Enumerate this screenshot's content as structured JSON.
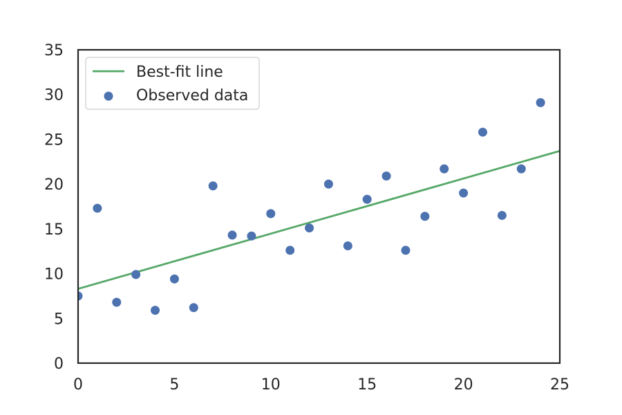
{
  "chart_data": {
    "type": "scatter",
    "title": "",
    "xlabel": "",
    "ylabel": "",
    "xlim": [
      0,
      25
    ],
    "ylim": [
      0,
      35
    ],
    "x_ticks": [
      "0",
      "5",
      "10",
      "15",
      "20",
      "25"
    ],
    "y_ticks": [
      "0",
      "5",
      "10",
      "15",
      "20",
      "25",
      "30",
      "35"
    ],
    "grid": false,
    "legend_position": "top-left",
    "series": [
      {
        "name": "Observed data",
        "kind": "scatter",
        "color": "#4c72b0",
        "x": [
          0,
          1,
          2,
          3,
          4,
          5,
          6,
          7,
          8,
          9,
          10,
          11,
          12,
          13,
          14,
          15,
          16,
          17,
          18,
          19,
          20,
          21,
          22,
          23,
          24
        ],
        "y": [
          7.5,
          17.3,
          6.8,
          9.9,
          5.9,
          9.4,
          6.2,
          19.8,
          14.3,
          14.2,
          16.7,
          12.6,
          15.1,
          20.0,
          13.1,
          18.3,
          20.9,
          12.6,
          16.4,
          21.7,
          19.0,
          25.8,
          16.5,
          21.7,
          29.1
        ]
      },
      {
        "name": "Best-fit line",
        "kind": "line",
        "color": "#55a868",
        "x": [
          0,
          25
        ],
        "y": [
          8.3,
          23.7
        ]
      }
    ]
  }
}
